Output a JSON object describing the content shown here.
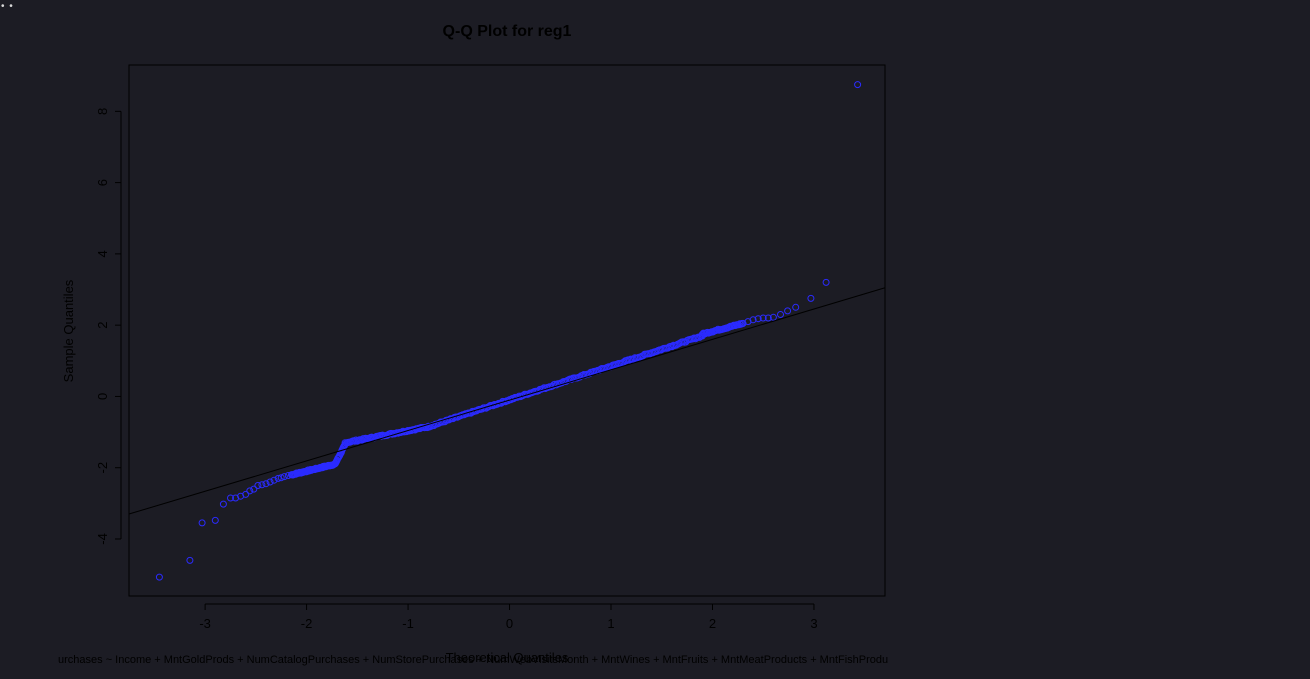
{
  "window": {
    "dots": "• •"
  },
  "chart_data": {
    "type": "scatter",
    "title": "Q-Q Plot for reg1",
    "xlabel": "Theoretical Quantiles",
    "ylabel": "Sample Quantiles",
    "xlim": [
      -3.75,
      3.7
    ],
    "ylim": [
      -5.6,
      9.3
    ],
    "x_ticks": [
      -3,
      -2,
      -1,
      0,
      1,
      2,
      3
    ],
    "y_ticks": [
      -4,
      -2,
      0,
      2,
      4,
      6,
      8
    ],
    "grid": false,
    "legend": "none",
    "colors": {
      "points": "#2b2bff",
      "line": "#000000",
      "axes": "#000000",
      "background": "#1c1c24"
    },
    "reference_line": {
      "points": [
        [
          -3.75,
          -3.3
        ],
        [
          3.7,
          3.05
        ]
      ]
    },
    "tail_points": {
      "x": [
        -3.45,
        -3.15,
        -3.03,
        -2.9,
        -2.82,
        -2.75,
        -2.7,
        -2.65,
        -2.6,
        -2.56,
        -2.52,
        -2.48,
        -2.44,
        -2.4,
        -2.36,
        -2.32,
        -2.28,
        -2.25,
        -2.22,
        -2.18,
        2.3,
        2.35,
        2.4,
        2.45,
        2.5,
        2.55,
        2.6,
        2.67,
        2.74,
        2.82,
        2.97,
        3.12,
        3.43
      ],
      "y": [
        -5.07,
        -4.6,
        -3.55,
        -3.48,
        -3.02,
        -2.85,
        -2.85,
        -2.8,
        -2.75,
        -2.65,
        -2.6,
        -2.5,
        -2.48,
        -2.45,
        -2.4,
        -2.35,
        -2.3,
        -2.28,
        -2.25,
        -2.22,
        2.05,
        2.1,
        2.15,
        2.18,
        2.2,
        2.2,
        2.22,
        2.3,
        2.4,
        2.5,
        2.75,
        3.2,
        8.75
      ]
    },
    "body_points": {
      "segments": [
        {
          "x0": -2.15,
          "x1": -1.72,
          "y0": -2.2,
          "y1": -1.9,
          "n": 60
        },
        {
          "x0": -1.72,
          "x1": -1.62,
          "y0": -1.9,
          "y1": -1.35,
          "n": 20
        },
        {
          "x0": -1.62,
          "x1": -0.8,
          "y0": -1.3,
          "y1": -0.85,
          "n": 70
        },
        {
          "x0": -0.8,
          "x1": 1.9,
          "y0": -0.85,
          "y1": 1.7,
          "n": 200
        },
        {
          "x0": 1.9,
          "x1": 2.3,
          "y0": 1.75,
          "y1": 2.05,
          "n": 40
        }
      ]
    },
    "formula": "urchases ~ Income + MntGoldProds + NumCatalogPurchases + NumStorePurchases + NumWebVisitsMonth + MntWines + MntFruits + MntMeatProducts + MntFishProdu"
  }
}
